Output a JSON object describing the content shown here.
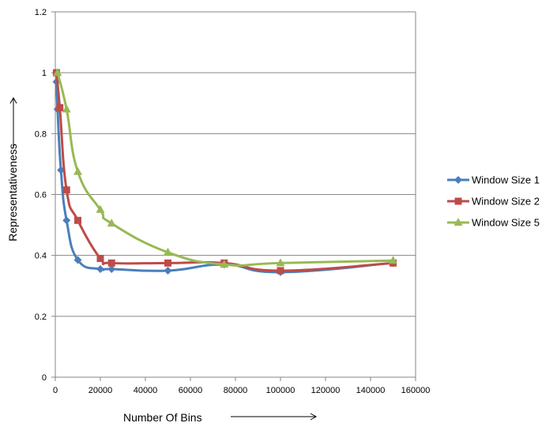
{
  "chart_data": {
    "type": "line",
    "title": "",
    "xlabel": "Number Of Bins",
    "ylabel": "Representativeness",
    "xlim": [
      0,
      160000
    ],
    "ylim": [
      0,
      1.2
    ],
    "x_ticks": [
      "0",
      "20000",
      "40000",
      "60000",
      "80000",
      "100000",
      "120000",
      "140000",
      "160000"
    ],
    "y_ticks": [
      "0",
      "0.2",
      "0.4",
      "0.6",
      "0.8",
      "1",
      "1.2"
    ],
    "grid": "horizontal",
    "legend_position": "right",
    "series": [
      {
        "name": "Window Size 1",
        "color": "#4a7ebb",
        "marker": "diamond",
        "points": [
          [
            500,
            0.97
          ],
          [
            1000,
            0.88
          ],
          [
            2500,
            0.68
          ],
          [
            5000,
            0.515
          ],
          [
            10000,
            0.385
          ],
          [
            20000,
            0.355
          ],
          [
            25000,
            0.355
          ],
          [
            50000,
            0.35
          ],
          [
            75000,
            0.37
          ],
          [
            100000,
            0.345
          ],
          [
            150000,
            0.375
          ]
        ]
      },
      {
        "name": "Window Size 2",
        "color": "#be4b48",
        "marker": "square",
        "points": [
          [
            500,
            1.0
          ],
          [
            2000,
            0.885
          ],
          [
            5000,
            0.615
          ],
          [
            10000,
            0.515
          ],
          [
            20000,
            0.39
          ],
          [
            25000,
            0.375
          ],
          [
            50000,
            0.375
          ],
          [
            75000,
            0.375
          ],
          [
            100000,
            0.35
          ],
          [
            150000,
            0.375
          ]
        ]
      },
      {
        "name": "Window Size 5",
        "color": "#98b954",
        "marker": "triangle",
        "points": [
          [
            1000,
            1.0
          ],
          [
            5000,
            0.88
          ],
          [
            10000,
            0.675
          ],
          [
            20000,
            0.55
          ],
          [
            25000,
            0.505
          ],
          [
            50000,
            0.41
          ],
          [
            75000,
            0.37
          ],
          [
            100000,
            0.375
          ],
          [
            150000,
            0.383
          ]
        ]
      }
    ]
  }
}
